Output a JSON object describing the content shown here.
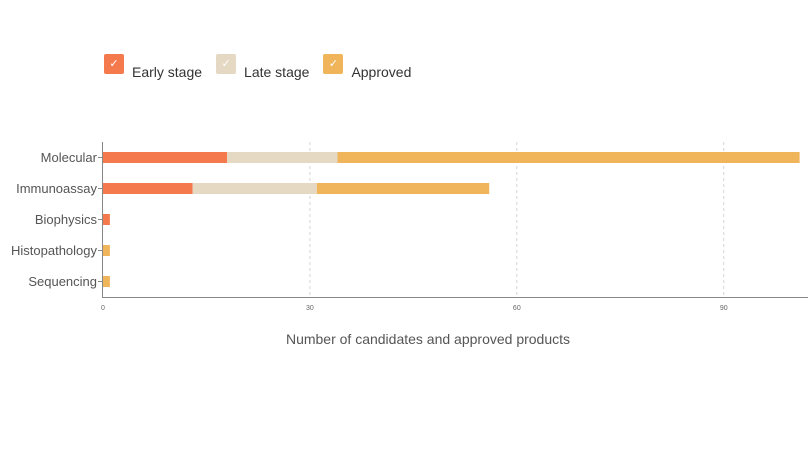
{
  "legend": {
    "items": [
      {
        "label": "Early stage",
        "color": "#f47a4d",
        "icon": "check-icon"
      },
      {
        "label": "Late stage",
        "color": "#e5d9c3",
        "icon": "check-icon"
      },
      {
        "label": "Approved",
        "color": "#f0b55a",
        "icon": "check-icon"
      }
    ]
  },
  "chart_data": {
    "type": "bar",
    "orientation": "horizontal",
    "stacked": true,
    "categories": [
      "Molecular",
      "Immunoassay",
      "Biophysics",
      "Histopathology",
      "Sequencing"
    ],
    "series": [
      {
        "name": "Early stage",
        "color": "#f47a4d",
        "values": [
          18,
          13,
          1,
          0,
          0
        ]
      },
      {
        "name": "Late stage",
        "color": "#e5d9c3",
        "values": [
          16,
          18,
          0,
          0,
          0
        ]
      },
      {
        "name": "Approved",
        "color": "#f0b55a",
        "values": [
          67,
          25,
          0,
          1,
          1
        ]
      }
    ],
    "xlabel": "Number of candidates and approved products",
    "ylabel": "",
    "xlim": [
      0,
      102
    ],
    "xticks": [
      "0",
      "30",
      "60",
      "90"
    ],
    "grid": true,
    "legend_position": "top-left"
  }
}
